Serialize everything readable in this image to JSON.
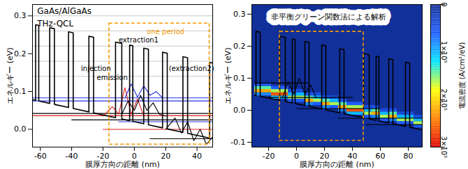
{
  "chart_data": [
    {
      "type": "line",
      "xlabel": "膜厚方向の距離 (nm)",
      "ylabel": "エネルギー (eV)",
      "xlim": [
        -65,
        50
      ],
      "xticks": [
        -60,
        -40,
        -20,
        0,
        20,
        40
      ],
      "ylim": [
        -0.047,
        0.33
      ],
      "yticks": [
        {
          "value": 0,
          "label": "0.0"
        },
        0.1,
        0.2,
        0.3
      ],
      "series": [
        {
          "type": "line",
          "color": "#000000",
          "x": [
            -65,
            -63,
            -63,
            -61,
            -61,
            -54,
            -54,
            -51,
            -51,
            -42,
            -42,
            -39,
            -39,
            -29,
            -29,
            -26,
            -26,
            -12,
            -12,
            -8,
            -8,
            -3,
            -3,
            -1,
            -1,
            6,
            6,
            9,
            9,
            18,
            18,
            21,
            21,
            31,
            31,
            34,
            34,
            48,
            48,
            50
          ],
          "values": [
            0.0785,
            0.0767,
            0.2767,
            0.2749,
            0.0749,
            0.0686,
            0.2686,
            0.2659,
            0.0659,
            0.0578,
            0.2578,
            0.2551,
            0.0551,
            0.0461,
            0.2461,
            0.2434,
            0.0434,
            0.0308,
            0.2308,
            0.2272,
            0.0272,
            0.0227,
            0.2227,
            0.2209,
            0.0209,
            0.0146,
            0.2146,
            0.2119,
            0.0119,
            0.0038,
            0.2038,
            0.2011,
            0.0011,
            -0.0079,
            0.1921,
            0.1894,
            -0.0106,
            -0.0232,
            0.1768,
            0.175
          ]
        },
        {
          "type": "line",
          "color": "#c8c8c8",
          "x": [
            -65,
            50
          ],
          "values": [
            0.14,
            0.14
          ]
        },
        {
          "type": "line",
          "color": "#c8c8c8",
          "x": [
            -65,
            50
          ],
          "values": [
            0.18,
            0.18
          ]
        },
        {
          "type": "line",
          "color": "#c8c8c8",
          "x": [
            -65,
            50
          ],
          "values": [
            0.22,
            0.22
          ]
        },
        {
          "type": "line",
          "color": "#c8c8c8",
          "x": [
            -65,
            50
          ],
          "values": [
            0.26,
            0.26
          ]
        },
        {
          "type": "line",
          "color": "#c8c8c8",
          "x": [
            -65,
            50
          ],
          "values": [
            0.3,
            0.3
          ]
        },
        {
          "type": "line",
          "color": "#2030e0",
          "x": [
            -65,
            50
          ],
          "values": [
            0.083,
            0.083
          ]
        },
        {
          "type": "line",
          "color": "#2030e0",
          "x": [
            -65,
            50
          ],
          "values": [
            0.075,
            0.075
          ]
        },
        {
          "type": "line",
          "color": "#000000",
          "x": [
            -65,
            50
          ],
          "values": [
            0.042,
            0.042
          ]
        },
        {
          "type": "line",
          "color": "#e02020",
          "x": [
            -65,
            50
          ],
          "values": [
            0.036,
            0.036
          ]
        },
        {
          "type": "line",
          "color": "#000000",
          "x": [
            -40,
            50
          ],
          "values": [
            0.025,
            0.025
          ]
        },
        {
          "type": "line",
          "color": "#2030e0",
          "x": [
            -10,
            50
          ],
          "values": [
            0.02,
            0.02
          ]
        },
        {
          "type": "line",
          "color": "#e02020",
          "x": [
            -20,
            50
          ],
          "values": [
            0.0,
            0.0
          ]
        },
        {
          "type": "line",
          "color": "#000000",
          "x": [
            10,
            50
          ],
          "values": [
            -0.025,
            -0.025
          ]
        },
        {
          "type": "line",
          "color": "#e02020",
          "x": [
            -20,
            -14,
            -10,
            -6,
            -2,
            2,
            6
          ],
          "values": [
            0.035,
            0.06,
            0.04,
            0.11,
            0.04,
            0.08,
            0.036
          ]
        },
        {
          "type": "line",
          "color": "#2030e0",
          "x": [
            -6,
            -2,
            2,
            6,
            10,
            14,
            18
          ],
          "values": [
            0.083,
            0.12,
            0.085,
            0.115,
            0.09,
            0.1,
            0.083
          ]
        },
        {
          "type": "line",
          "color": "#000000",
          "x": [
            -8,
            -4,
            0,
            4,
            8,
            12,
            16,
            20
          ],
          "values": [
            0.04,
            0.075,
            0.05,
            0.09,
            0.05,
            0.07,
            0.04,
            0.035
          ]
        },
        {
          "type": "line",
          "color": "#000000",
          "x": [
            20,
            26,
            30,
            34,
            38,
            42,
            46,
            50
          ],
          "values": [
            0.0,
            0.03,
            -0.01,
            0.02,
            -0.03,
            0.0,
            -0.04,
            -0.02
          ]
        }
      ],
      "annotations": [
        {
          "text": "GaAs/AlGaAs",
          "x": -62,
          "y": 0.313,
          "color": "#000000"
        },
        {
          "text": "THz-QCL",
          "x": -62,
          "y": 0.28,
          "color": "#000000"
        },
        {
          "text": "one period",
          "x": 8,
          "y": 0.257,
          "color": "#f39800"
        },
        {
          "text": "extraction1",
          "x": -10,
          "y": 0.235,
          "color": "#000000"
        },
        {
          "text": "injection",
          "x": -34,
          "y": 0.16,
          "color": "#000000"
        },
        {
          "text": "emission",
          "x": -24,
          "y": 0.136,
          "color": "#000000"
        },
        {
          "text": "(extraction2)",
          "x": 22,
          "y": 0.16,
          "color": "#000000"
        }
      ],
      "box": {
        "x": [
          -16,
          48
        ],
        "y": [
          -0.04,
          0.28
        ],
        "color": "#f39800",
        "line_style": "dashed"
      }
    },
    {
      "type": "heatmap",
      "title": "非平衡グリーン関数法による解析",
      "xlabel": "膜厚方向の距離 (nm)",
      "ylabel": "エネルギー (eV)",
      "xlim": [
        -32,
        90
      ],
      "xticks": [
        -20,
        0,
        20,
        40,
        60,
        80
      ],
      "ylim": [
        -0.115,
        0.33
      ],
      "yticks": [
        -0.1,
        {
          "value": 0,
          "label": "0.0"
        },
        0.1,
        0.2,
        0.3
      ],
      "colorbar": {
        "label": "電流密度 (A/cm²/eV)",
        "lim": [
          0,
          300000
        ],
        "ticks": [
          {
            "value": 0,
            "label": "0"
          },
          {
            "value": 100000,
            "label": "1×10⁵"
          },
          {
            "value": 200000,
            "label": "2×10⁵"
          },
          {
            "value": 300000,
            "label": "3×10⁵"
          }
        ],
        "colors": [
          "#12309a",
          "#1e5cff",
          "#00e5ff",
          "#ffff00",
          "#ff8000",
          "#e00000"
        ]
      },
      "cell_size": [
        6,
        0.01
      ],
      "cells": [
        [
          -27,
          0.05,
          80000
        ],
        [
          -27,
          0.06,
          220000
        ],
        [
          -27,
          0.07,
          140000
        ],
        [
          -27,
          0.08,
          50000
        ],
        [
          -21,
          0.05,
          80000
        ],
        [
          -21,
          0.06,
          220000
        ],
        [
          -21,
          0.07,
          140000
        ],
        [
          -21,
          0.08,
          50000
        ],
        [
          -15,
          0.04,
          100000
        ],
        [
          -15,
          0.05,
          260000
        ],
        [
          -15,
          0.06,
          160000
        ],
        [
          -15,
          0.07,
          60000
        ],
        [
          -9,
          0.04,
          100000
        ],
        [
          -9,
          0.05,
          260000
        ],
        [
          -9,
          0.06,
          160000
        ],
        [
          -9,
          0.07,
          60000
        ],
        [
          -3,
          0.03,
          60000
        ],
        [
          -3,
          0.04,
          160000
        ],
        [
          -3,
          0.05,
          100000
        ],
        [
          -3,
          0.06,
          40000
        ],
        [
          3,
          0.03,
          60000
        ],
        [
          3,
          0.04,
          160000
        ],
        [
          3,
          0.05,
          100000
        ],
        [
          3,
          0.06,
          40000
        ],
        [
          9,
          0.02,
          80000
        ],
        [
          9,
          0.03,
          220000
        ],
        [
          9,
          0.04,
          140000
        ],
        [
          9,
          0.05,
          50000
        ],
        [
          15,
          0.02,
          60000
        ],
        [
          15,
          0.03,
          160000
        ],
        [
          15,
          0.04,
          100000
        ],
        [
          15,
          0.05,
          40000
        ],
        [
          21,
          0.01,
          80000
        ],
        [
          21,
          0.02,
          220000
        ],
        [
          21,
          0.03,
          140000
        ],
        [
          21,
          0.04,
          50000
        ],
        [
          27,
          0.01,
          60000
        ],
        [
          27,
          0.02,
          160000
        ],
        [
          27,
          0.03,
          100000
        ],
        [
          27,
          0.04,
          40000
        ],
        [
          33,
          0,
          80000
        ],
        [
          33,
          0.01,
          220000
        ],
        [
          33,
          0.02,
          140000
        ],
        [
          33,
          0.03,
          50000
        ],
        [
          39,
          -0.01,
          100000
        ],
        [
          39,
          0,
          260000
        ],
        [
          39,
          0.01,
          160000
        ],
        [
          39,
          0.02,
          60000
        ],
        [
          45,
          -0.01,
          100000
        ],
        [
          45,
          0,
          260000
        ],
        [
          45,
          0.01,
          160000
        ],
        [
          45,
          0.02,
          60000
        ],
        [
          51,
          -0.02,
          60000
        ],
        [
          51,
          -0.01,
          160000
        ],
        [
          51,
          0,
          100000
        ],
        [
          51,
          0.01,
          40000
        ],
        [
          57,
          -0.02,
          80000
        ],
        [
          57,
          -0.01,
          220000
        ],
        [
          57,
          0,
          140000
        ],
        [
          57,
          0.01,
          50000
        ],
        [
          63,
          -0.03,
          60000
        ],
        [
          63,
          -0.02,
          160000
        ],
        [
          63,
          -0.01,
          100000
        ],
        [
          63,
          0,
          40000
        ],
        [
          69,
          -0.03,
          80000
        ],
        [
          69,
          -0.02,
          220000
        ],
        [
          69,
          -0.01,
          140000
        ],
        [
          69,
          0,
          50000
        ],
        [
          75,
          -0.04,
          60000
        ],
        [
          75,
          -0.03,
          160000
        ],
        [
          75,
          -0.02,
          100000
        ],
        [
          75,
          -0.01,
          40000
        ],
        [
          81,
          -0.04,
          60000
        ],
        [
          81,
          -0.03,
          160000
        ],
        [
          81,
          -0.02,
          100000
        ],
        [
          81,
          -0.01,
          40000
        ],
        [
          87,
          -0.05,
          60000
        ],
        [
          87,
          -0.04,
          160000
        ],
        [
          87,
          -0.03,
          100000
        ],
        [
          87,
          -0.02,
          40000
        ]
      ],
      "series": [
        {
          "type": "line",
          "color": "#000000",
          "x": [
            -30,
            -29,
            -29,
            -26,
            -26,
            -12,
            -12,
            -8,
            -8,
            -3,
            -3,
            -1,
            -1,
            6,
            6,
            9,
            9,
            18,
            18,
            21,
            21,
            31,
            31,
            34,
            34,
            48,
            48,
            52,
            52,
            57,
            57,
            59,
            59,
            66,
            66,
            69,
            69,
            78,
            78,
            81,
            81,
            90
          ],
          "values": [
            0.047,
            0.0461,
            0.2461,
            0.2434,
            0.0434,
            0.0308,
            0.2308,
            0.2272,
            0.0272,
            0.0227,
            0.2227,
            0.2209,
            0.0209,
            0.0146,
            0.2146,
            0.2119,
            0.0119,
            0.0038,
            0.2038,
            0.2011,
            0.0011,
            -0.0079,
            0.1921,
            0.1894,
            -0.0106,
            -0.0232,
            0.1768,
            0.1732,
            -0.0268,
            -0.0313,
            0.1687,
            0.1669,
            -0.0331,
            -0.0394,
            0.1606,
            0.1579,
            -0.0421,
            -0.0502,
            0.1498,
            0.1471,
            -0.0529,
            -0.061
          ]
        },
        {
          "type": "line",
          "color": "#000000",
          "x": [
            -30,
            8
          ],
          "values": [
            0.085,
            0.085
          ]
        },
        {
          "type": "line",
          "color": "#000000",
          "x": [
            -20,
            40
          ],
          "values": [
            0.04,
            0.04
          ]
        },
        {
          "type": "line",
          "color": "#000000",
          "x": [
            0,
            60
          ],
          "values": [
            0.005,
            0.005
          ]
        },
        {
          "type": "line",
          "color": "#000000",
          "x": [
            30,
            90
          ],
          "values": [
            -0.025,
            -0.025
          ]
        },
        {
          "type": "line",
          "color": "#000000",
          "x": [
            50,
            90
          ],
          "values": [
            -0.045,
            -0.045
          ]
        },
        {
          "type": "line",
          "color": "#000000",
          "x": [
            -10,
            -6,
            -2,
            2,
            6,
            10,
            14
          ],
          "values": [
            0.04,
            0.09,
            0.05,
            0.1,
            0.05,
            0.08,
            0.04
          ]
        }
      ],
      "box": {
        "x": [
          -12,
          48
        ],
        "y": [
          -0.095,
          0.245
        ],
        "color": "#f39800",
        "line_style": "dashed"
      }
    }
  ]
}
